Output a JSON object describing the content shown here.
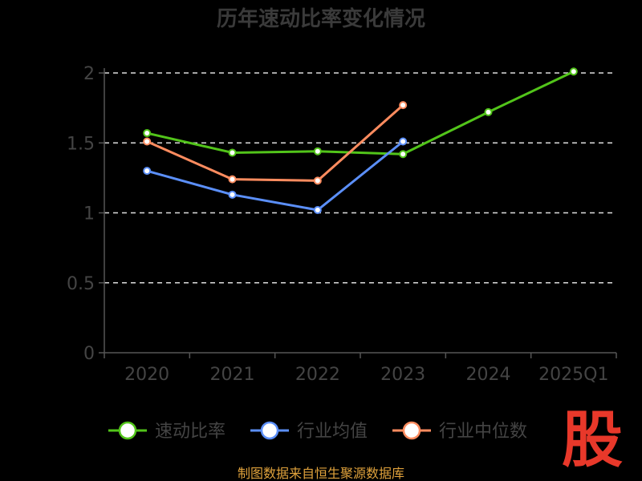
{
  "title": "历年速动比率变化情况",
  "source_note": "制图数据来自恒生聚源数据库",
  "logo_text": "股",
  "colors": {
    "background": "#000000",
    "axis": "#555555",
    "grid": "#dddddd",
    "text": "#444444",
    "source": "#e0a23c",
    "logo": "#e8382a"
  },
  "chart_data": {
    "type": "line",
    "categories": [
      "2020",
      "2021",
      "2022",
      "2023",
      "2024",
      "2025Q1"
    ],
    "ylim": [
      0,
      2
    ],
    "yticks": [
      "0",
      "0.5",
      "1",
      "1.5",
      "2"
    ],
    "grid": true,
    "legend_position": "bottom",
    "series": [
      {
        "name": "速动比率",
        "color": "#52c41a",
        "values": [
          1.57,
          1.43,
          1.44,
          1.42,
          1.72,
          2.01
        ]
      },
      {
        "name": "行业均值",
        "color": "#5b8ff9",
        "values": [
          1.3,
          1.13,
          1.02,
          1.51,
          null,
          null
        ]
      },
      {
        "name": "行业中位数",
        "color": "#ff8c5f",
        "values": [
          1.51,
          1.24,
          1.23,
          1.77,
          null,
          null
        ]
      }
    ]
  }
}
